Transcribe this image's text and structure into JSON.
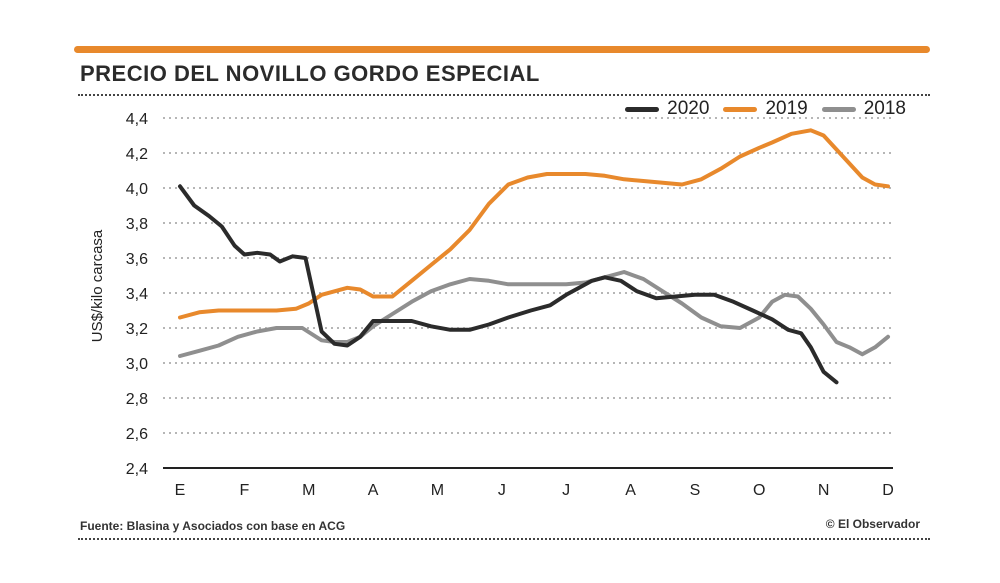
{
  "header": {
    "title": "PRECIO DEL NOVILLO GORDO ESPECIAL",
    "accent_color": "#e8892c"
  },
  "footer": {
    "source": "Fuente: Blasina y Asociados con base en ACG",
    "credit": "© El Observador"
  },
  "chart_data": {
    "type": "line",
    "title": "PRECIO DEL NOVILLO GORDO ESPECIAL",
    "ylabel": "US$/kilo carcasa",
    "xlabel": "",
    "categories": [
      "E",
      "F",
      "M",
      "A",
      "M",
      "J",
      "J",
      "A",
      "S",
      "O",
      "N",
      "D"
    ],
    "xlim": [
      0,
      11
    ],
    "ylim": [
      2.4,
      4.4
    ],
    "yticks": [
      2.4,
      2.6,
      2.8,
      3.0,
      3.2,
      3.4,
      3.6,
      3.8,
      4.0,
      4.2,
      4.4
    ],
    "ytick_labels": [
      "2,4",
      "2,6",
      "2,8",
      "3,0",
      "3,2",
      "3,4",
      "3,6",
      "3,8",
      "4,0",
      "4,2",
      "4,4"
    ],
    "grid": "horizontal dotted",
    "legend_position": "top-right",
    "series": [
      {
        "name": "2020",
        "color": "#2b2b2b",
        "x": [
          0,
          0.22,
          0.45,
          0.65,
          0.85,
          1.0,
          1.2,
          1.4,
          1.55,
          1.75,
          1.95,
          2.2,
          2.4,
          2.6,
          2.8,
          3.0,
          3.3,
          3.6,
          3.9,
          4.2,
          4.5,
          4.8,
          5.1,
          5.45,
          5.75,
          6.0,
          6.2,
          6.4,
          6.6,
          6.85,
          7.1,
          7.4,
          7.7,
          8.0,
          8.3,
          8.6,
          8.9,
          9.2,
          9.45,
          9.65,
          9.8,
          10.0,
          10.2
        ],
        "y": [
          4.01,
          3.9,
          3.84,
          3.78,
          3.67,
          3.62,
          3.63,
          3.62,
          3.58,
          3.61,
          3.6,
          3.18,
          3.11,
          3.1,
          3.15,
          3.24,
          3.24,
          3.24,
          3.21,
          3.19,
          3.19,
          3.22,
          3.26,
          3.3,
          3.33,
          3.39,
          3.43,
          3.47,
          3.49,
          3.47,
          3.41,
          3.37,
          3.38,
          3.39,
          3.39,
          3.35,
          3.3,
          3.25,
          3.19,
          3.17,
          3.09,
          2.95,
          2.89
        ]
      },
      {
        "name": "2019",
        "color": "#e8892c",
        "x": [
          0,
          0.3,
          0.6,
          0.9,
          1.2,
          1.5,
          1.8,
          2.0,
          2.2,
          2.4,
          2.6,
          2.8,
          3.0,
          3.3,
          3.6,
          3.9,
          4.2,
          4.5,
          4.8,
          5.1,
          5.4,
          5.7,
          6.0,
          6.3,
          6.6,
          6.9,
          7.2,
          7.5,
          7.8,
          8.1,
          8.4,
          8.7,
          9.0,
          9.2,
          9.5,
          9.8,
          10.0,
          10.2,
          10.4,
          10.6,
          10.8,
          11.0
        ],
        "y": [
          3.26,
          3.29,
          3.3,
          3.3,
          3.3,
          3.3,
          3.31,
          3.34,
          3.39,
          3.41,
          3.43,
          3.42,
          3.38,
          3.38,
          3.47,
          3.56,
          3.65,
          3.76,
          3.91,
          4.02,
          4.06,
          4.08,
          4.08,
          4.08,
          4.07,
          4.05,
          4.04,
          4.03,
          4.02,
          4.05,
          4.11,
          4.18,
          4.23,
          4.26,
          4.31,
          4.33,
          4.3,
          4.22,
          4.14,
          4.06,
          4.02,
          4.01
        ]
      },
      {
        "name": "2018",
        "color": "#8f8f8f",
        "x": [
          0,
          0.3,
          0.6,
          0.9,
          1.2,
          1.5,
          1.75,
          1.9,
          2.2,
          2.4,
          2.6,
          2.8,
          3.0,
          3.3,
          3.6,
          3.9,
          4.2,
          4.5,
          4.8,
          5.1,
          5.4,
          5.7,
          6.0,
          6.3,
          6.6,
          6.9,
          7.2,
          7.5,
          7.8,
          8.1,
          8.4,
          8.7,
          9.0,
          9.2,
          9.4,
          9.6,
          9.8,
          10.0,
          10.2,
          10.4,
          10.6,
          10.8,
          11.0
        ],
        "y": [
          3.04,
          3.07,
          3.1,
          3.15,
          3.18,
          3.2,
          3.2,
          3.2,
          3.13,
          3.12,
          3.12,
          3.15,
          3.21,
          3.28,
          3.35,
          3.41,
          3.45,
          3.48,
          3.47,
          3.45,
          3.45,
          3.45,
          3.45,
          3.46,
          3.49,
          3.52,
          3.48,
          3.41,
          3.34,
          3.26,
          3.21,
          3.2,
          3.26,
          3.35,
          3.39,
          3.38,
          3.31,
          3.22,
          3.12,
          3.09,
          3.05,
          3.09,
          3.15
        ]
      }
    ]
  }
}
